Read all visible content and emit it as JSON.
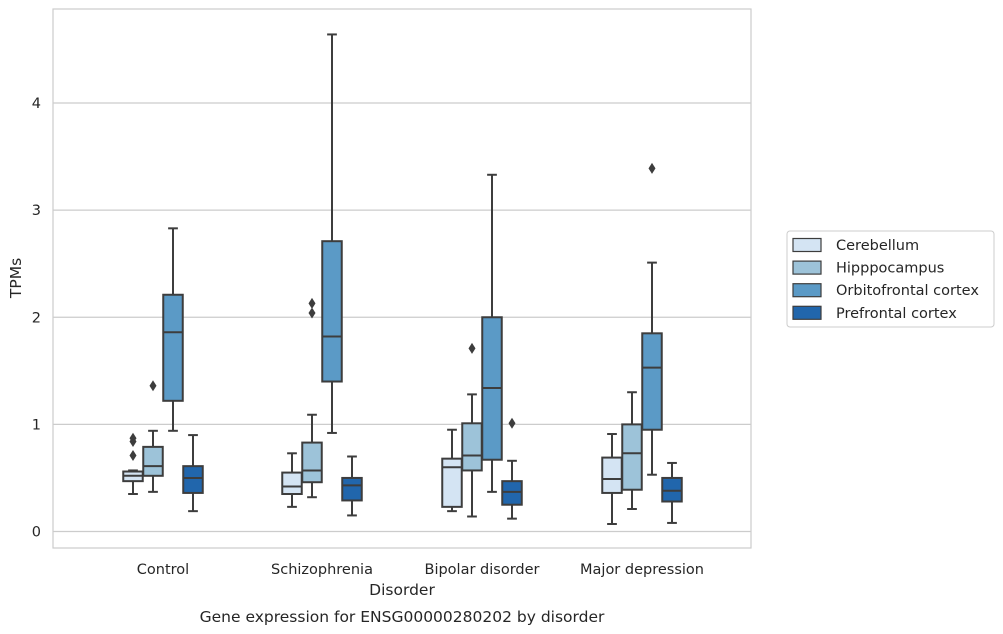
{
  "chart_data": {
    "type": "box",
    "caption": "Gene expression for ENSG00000280202 by disorder",
    "xlabel": "Disorder",
    "ylabel": "TPMs",
    "ylim": [
      -0.15,
      4.95
    ],
    "yticks": [
      0,
      1,
      2,
      3,
      4
    ],
    "grid": "horizontal",
    "legend_position": "right",
    "categories": [
      "Control",
      "Schizophrenia",
      "Bipolar disorder",
      "Major depression"
    ],
    "series": [
      {
        "name": "Cerebellum",
        "color": "#d4e4f3",
        "boxes": [
          {
            "whisker_low": 0.35,
            "q1": 0.47,
            "median": 0.52,
            "q3": 0.56,
            "whisker_high": 0.57,
            "outliers": [
              0.71,
              0.84,
              0.87
            ]
          },
          {
            "whisker_low": 0.23,
            "q1": 0.35,
            "median": 0.42,
            "q3": 0.55,
            "whisker_high": 0.73,
            "outliers": []
          },
          {
            "whisker_low": 0.19,
            "q1": 0.23,
            "median": 0.6,
            "q3": 0.68,
            "whisker_high": 0.95,
            "outliers": []
          },
          {
            "whisker_low": 0.07,
            "q1": 0.36,
            "median": 0.49,
            "q3": 0.69,
            "whisker_high": 0.91,
            "outliers": []
          }
        ]
      },
      {
        "name": "Hipppocampus",
        "color": "#9dc3d9",
        "boxes": [
          {
            "whisker_low": 0.37,
            "q1": 0.52,
            "median": 0.61,
            "q3": 0.79,
            "whisker_high": 0.94,
            "outliers": [
              1.36
            ]
          },
          {
            "whisker_low": 0.32,
            "q1": 0.46,
            "median": 0.57,
            "q3": 0.83,
            "whisker_high": 1.09,
            "outliers": [
              2.04,
              2.13
            ]
          },
          {
            "whisker_low": 0.14,
            "q1": 0.57,
            "median": 0.71,
            "q3": 1.01,
            "whisker_high": 1.28,
            "outliers": [
              1.71
            ]
          },
          {
            "whisker_low": 0.21,
            "q1": 0.39,
            "median": 0.73,
            "q3": 1.0,
            "whisker_high": 1.3,
            "outliers": []
          }
        ]
      },
      {
        "name": "Orbitofrontal cortex",
        "color": "#5b9ac6",
        "boxes": [
          {
            "whisker_low": 0.94,
            "q1": 1.22,
            "median": 1.86,
            "q3": 2.21,
            "whisker_high": 2.83,
            "outliers": []
          },
          {
            "whisker_low": 0.92,
            "q1": 1.4,
            "median": 1.82,
            "q3": 2.71,
            "whisker_high": 4.64,
            "outliers": []
          },
          {
            "whisker_low": 0.37,
            "q1": 0.67,
            "median": 1.34,
            "q3": 2.0,
            "whisker_high": 3.33,
            "outliers": []
          },
          {
            "whisker_low": 0.53,
            "q1": 0.95,
            "median": 1.53,
            "q3": 1.85,
            "whisker_high": 2.51,
            "outliers": [
              3.39
            ]
          }
        ]
      },
      {
        "name": "Prefrontal cortex",
        "color": "#2166ac",
        "boxes": [
          {
            "whisker_low": 0.19,
            "q1": 0.36,
            "median": 0.5,
            "q3": 0.61,
            "whisker_high": 0.9,
            "outliers": []
          },
          {
            "whisker_low": 0.15,
            "q1": 0.29,
            "median": 0.43,
            "q3": 0.5,
            "whisker_high": 0.7,
            "outliers": []
          },
          {
            "whisker_low": 0.12,
            "q1": 0.25,
            "median": 0.37,
            "q3": 0.47,
            "whisker_high": 0.66,
            "outliers": [
              1.01
            ]
          },
          {
            "whisker_low": 0.08,
            "q1": 0.28,
            "median": 0.38,
            "q3": 0.5,
            "whisker_high": 0.64,
            "outliers": []
          }
        ]
      }
    ]
  }
}
